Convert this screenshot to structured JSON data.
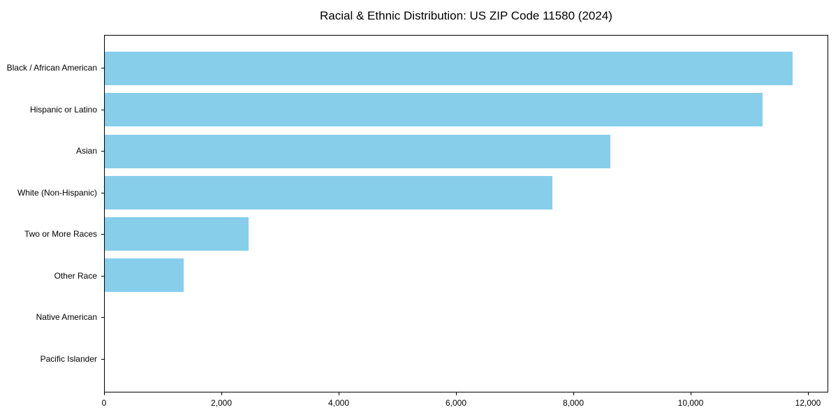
{
  "chart_data": {
    "type": "bar",
    "orientation": "horizontal",
    "title": "Racial & Ethnic Distribution: US ZIP Code 11580 (2024)",
    "categories": [
      "Black / African American",
      "Hispanic or Latino",
      "Asian",
      "White (Non-Hispanic)",
      "Two or More Races",
      "Other Race",
      "Native American",
      "Pacific Islander"
    ],
    "values": [
      11750,
      11230,
      8630,
      7650,
      2460,
      1350,
      0,
      0
    ],
    "xlabel": "",
    "ylabel": "",
    "xlim": [
      0,
      12345
    ],
    "xticks": [
      0,
      2000,
      4000,
      6000,
      8000,
      10000,
      12000
    ],
    "xtick_labels": [
      "0",
      "2,000",
      "4,000",
      "6,000",
      "8,000",
      "10,000",
      "12,000"
    ],
    "bar_color": "#87CEEB",
    "axis_color": "#000000",
    "text_color": "#000000",
    "background_color": "#ffffff",
    "grid": false,
    "legend": null
  }
}
